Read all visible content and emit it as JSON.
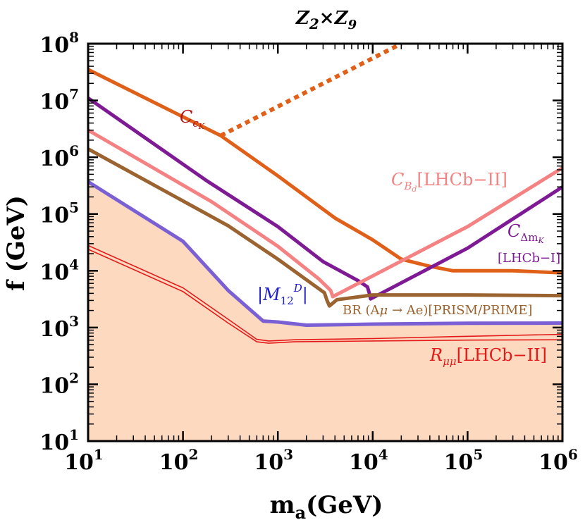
{
  "chart_data": {
    "type": "line",
    "title": "Z2×Z9",
    "xlabel": "m_a(GeV)",
    "ylabel": "f (GeV)",
    "xscale": "log",
    "yscale": "log",
    "xlim": [
      10,
      1000000
    ],
    "ylim": [
      10,
      100000000
    ],
    "xticks": [
      {
        "base": "10",
        "exp": "1",
        "value": 10
      },
      {
        "base": "10",
        "exp": "2",
        "value": 100
      },
      {
        "base": "10",
        "exp": "3",
        "value": 1000
      },
      {
        "base": "10",
        "exp": "4",
        "value": 10000
      },
      {
        "base": "10",
        "exp": "5",
        "value": 100000
      },
      {
        "base": "10",
        "exp": "6",
        "value": 1000000
      }
    ],
    "yticks": [
      {
        "base": "10",
        "exp": "1",
        "value": 10
      },
      {
        "base": "10",
        "exp": "2",
        "value": 100
      },
      {
        "base": "10",
        "exp": "3",
        "value": 1000
      },
      {
        "base": "10",
        "exp": "4",
        "value": 10000
      },
      {
        "base": "10",
        "exp": "5",
        "value": 100000
      },
      {
        "base": "10",
        "exp": "6",
        "value": 1000000
      },
      {
        "base": "10",
        "exp": "7",
        "value": 10000000
      },
      {
        "base": "10",
        "exp": "8",
        "value": 100000000
      }
    ],
    "excluded_region": {
      "name": "excluded",
      "color": "#fdd9bf",
      "x": [
        10,
        100,
        300,
        700,
        1000,
        2000,
        10000,
        100000,
        1000000
      ],
      "y": [
        400000,
        36000,
        4800,
        1450,
        1230,
        1100,
        1120,
        1160,
        1180
      ]
    },
    "series": [
      {
        "name": "C_ε_K",
        "label": "C",
        "sub": "εK",
        "color": "#e0601a",
        "label_color": "#b01818",
        "style": "solid",
        "x": [
          10,
          250,
          1000,
          4000,
          10000,
          20000,
          40000,
          70000,
          300000,
          1000000
        ],
        "y": [
          35000000,
          2400000,
          470000,
          85000,
          35000,
          16000,
          12000,
          10000,
          10000,
          9200
        ]
      },
      {
        "name": "C_ε_K (projection)",
        "color": "#e0601a",
        "style": "dotted",
        "x": [
          250,
          20000
        ],
        "y": [
          2400000,
          100000000
        ]
      },
      {
        "name": "C_Δm_K [LHCb-I]",
        "label": "C",
        "sub": "Δm",
        "sub2": "K",
        "label2": "[LHCb−I]",
        "color": "#7e1a94",
        "label_color": "#7e1a94",
        "style": "solid",
        "x": [
          10,
          180,
          1000,
          3000,
          7000,
          8800,
          9300,
          9500,
          100000,
          1000000
        ],
        "y": [
          11000000,
          380000,
          60000,
          14500,
          6700,
          5200,
          3800,
          3200,
          25000,
          300000
        ]
      },
      {
        "name": "C_B_d [LHCb-II]",
        "label": "C",
        "sub": "B",
        "sub2": "d",
        "label2": "[LHCb−II]",
        "color": "#f58282",
        "label_color": "#f58282",
        "style": "solid",
        "x": [
          10,
          200,
          1000,
          2700,
          3600,
          3800,
          100000,
          1000000
        ],
        "y": [
          3000000,
          165000,
          27000,
          7200,
          4500,
          3500,
          60000,
          650000
        ]
      },
      {
        "name": "BR(Aμ→Ae)[PRISM/PRIME]",
        "label": "BR (Aμ → Ae)[PRISM/PRIME]",
        "color": "#9a6330",
        "label_color": "#9a6330",
        "style": "solid",
        "x": [
          10,
          300,
          1000,
          2500,
          3100,
          3300,
          3500,
          4200,
          10000,
          100000,
          1000000
        ],
        "y": [
          1400000,
          62000,
          16000,
          5300,
          4100,
          3000,
          2400,
          3100,
          3750,
          3750,
          3650
        ]
      },
      {
        "name": "|M12^D|",
        "label": "|M",
        "sub": "12",
        "sup": "D",
        "label_end": "|",
        "color": "#7b5fd4",
        "label_color": "#2020c8",
        "style": "solid",
        "x": [
          10,
          100,
          300,
          700,
          1000,
          2000,
          10000,
          100000,
          1000000
        ],
        "y": [
          370000,
          33000,
          4500,
          1300,
          1250,
          1100,
          1150,
          1190,
          1200
        ]
      },
      {
        "name": "R_μμ [LHCb-II] (upper)",
        "color": "#e41a1a",
        "style": "thin",
        "x": [
          10,
          100,
          300,
          600,
          800,
          1500,
          10000,
          100000,
          1000000
        ],
        "y": [
          28000,
          5000,
          1400,
          620,
          580,
          610,
          640,
          700,
          760
        ]
      },
      {
        "name": "R_μμ [LHCb-II] (lower)",
        "label": "R",
        "sub": "μμ",
        "label2": "[LHCb−II]",
        "color": "#e41a1a",
        "label_color": "#e41a1a",
        "style": "thin",
        "x": [
          10,
          100,
          300,
          600,
          800,
          1500,
          10000,
          100000,
          1000000
        ],
        "y": [
          24000,
          4300,
          1200,
          560,
          530,
          560,
          580,
          600,
          610
        ]
      }
    ]
  }
}
